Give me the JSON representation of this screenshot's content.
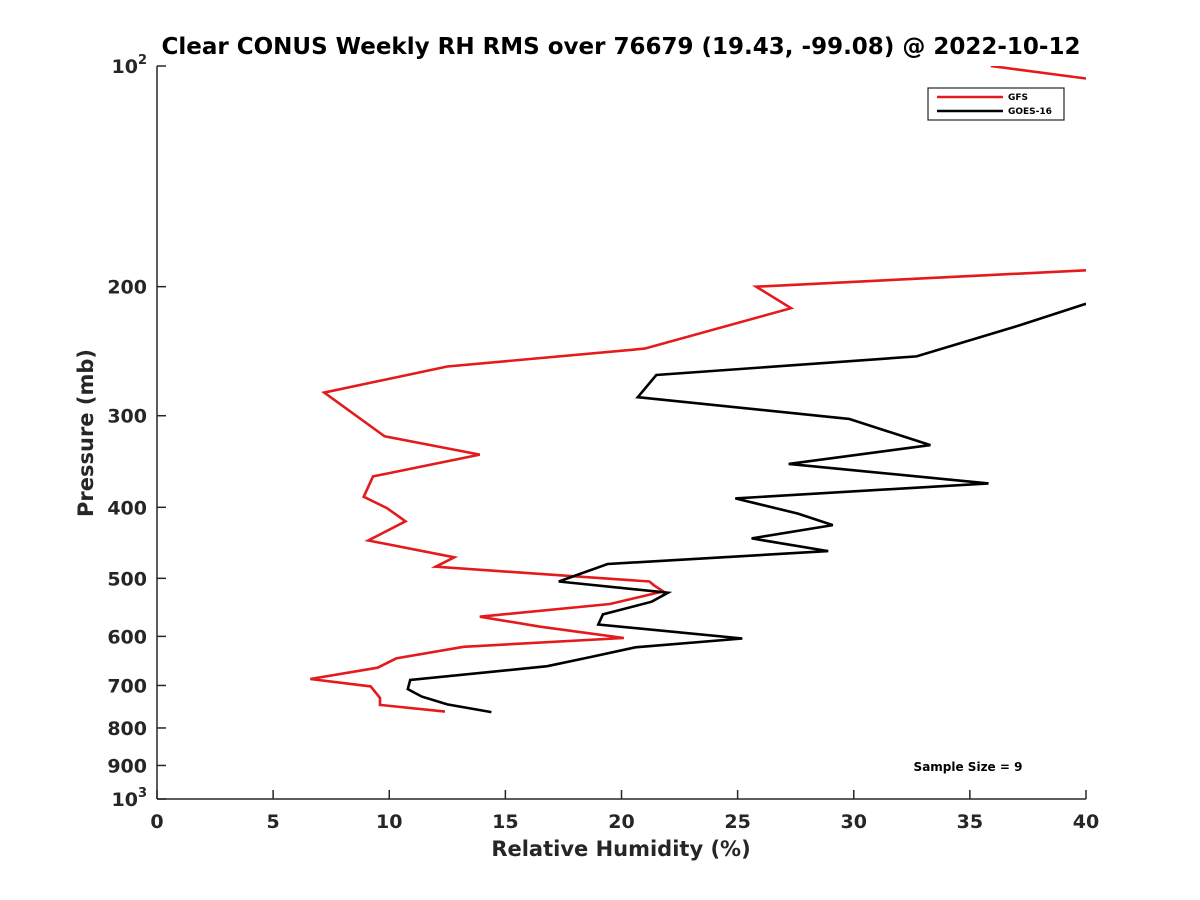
{
  "chart_data": {
    "type": "line",
    "title": "Clear CONUS Weekly RH RMS over 76679 (19.43, -99.08) @ 2022-10-12",
    "xlabel": "Relative Humidity (%)",
    "ylabel": "Pressure (mb)",
    "xlim": [
      0,
      40
    ],
    "ylim": [
      100,
      1000
    ],
    "yscale": "log",
    "y_reversed": true,
    "x_ticks": [
      "0",
      "5",
      "10",
      "15",
      "20",
      "25",
      "30",
      "35",
      "40"
    ],
    "y_ticks": [
      {
        "value": 100,
        "base": "10",
        "exp": "2"
      },
      {
        "value": 200,
        "label": "200"
      },
      {
        "value": 300,
        "label": "300"
      },
      {
        "value": 400,
        "label": "400"
      },
      {
        "value": 500,
        "label": "500"
      },
      {
        "value": 600,
        "label": "600"
      },
      {
        "value": 700,
        "label": "700"
      },
      {
        "value": 800,
        "label": "800"
      },
      {
        "value": 900,
        "label": "900"
      },
      {
        "value": 1000,
        "base": "10",
        "exp": "3"
      }
    ],
    "legend": {
      "placement": "top-right"
    },
    "grid": false,
    "annotation": "Sample Size = 9",
    "series": [
      {
        "name": "GFS",
        "color": "#e41a1c",
        "segments": [
          [
            [
              35.9,
              100
            ],
            [
              40,
              104
            ]
          ],
          [
            [
              40,
              190
            ],
            [
              25.8,
              200
            ],
            [
              27.3,
              214
            ],
            [
              21.0,
              243
            ],
            [
              12.5,
              257
            ],
            [
              7.2,
              279
            ],
            [
              9.8,
              320
            ],
            [
              13.9,
              339
            ],
            [
              9.3,
              363
            ],
            [
              8.9,
              387
            ],
            [
              9.9,
              401
            ],
            [
              10.7,
              418
            ],
            [
              9.1,
              444
            ],
            [
              12.8,
              468
            ],
            [
              12.0,
              482
            ],
            [
              21.2,
              505
            ],
            [
              21.4,
              511
            ],
            [
              21.8,
              521
            ],
            [
              19.5,
              542
            ],
            [
              13.9,
              564
            ],
            [
              16.5,
              582
            ],
            [
              20.1,
              603
            ],
            [
              13.2,
              620
            ],
            [
              10.3,
              643
            ],
            [
              9.5,
              662
            ],
            [
              6.6,
              686
            ],
            [
              9.2,
              702
            ],
            [
              9.6,
              728
            ],
            [
              9.6,
              744
            ],
            [
              12.4,
              760
            ]
          ]
        ]
      },
      {
        "name": "GOES-16",
        "color": "#000000",
        "segments": [
          [
            [
              40,
              211
            ],
            [
              37.1,
              226
            ],
            [
              32.7,
              249
            ],
            [
              21.5,
              264
            ],
            [
              20.7,
              283
            ],
            [
              29.8,
              303
            ],
            [
              33.3,
              329
            ],
            [
              27.2,
              349
            ],
            [
              35.8,
              371
            ],
            [
              24.9,
              389
            ],
            [
              27.6,
              408
            ],
            [
              29.1,
              423
            ],
            [
              25.6,
              441
            ],
            [
              28.9,
              459
            ],
            [
              19.4,
              478
            ],
            [
              17.3,
              505
            ],
            [
              22.0,
              523
            ],
            [
              21.3,
              538
            ],
            [
              19.2,
              560
            ],
            [
              19.0,
              578
            ],
            [
              25.2,
              604
            ],
            [
              20.6,
              621
            ],
            [
              18.7,
              640
            ],
            [
              16.8,
              659
            ],
            [
              10.9,
              688
            ],
            [
              10.8,
              708
            ],
            [
              11.4,
              725
            ],
            [
              12.5,
              743
            ],
            [
              14.4,
              761
            ]
          ]
        ]
      }
    ]
  }
}
